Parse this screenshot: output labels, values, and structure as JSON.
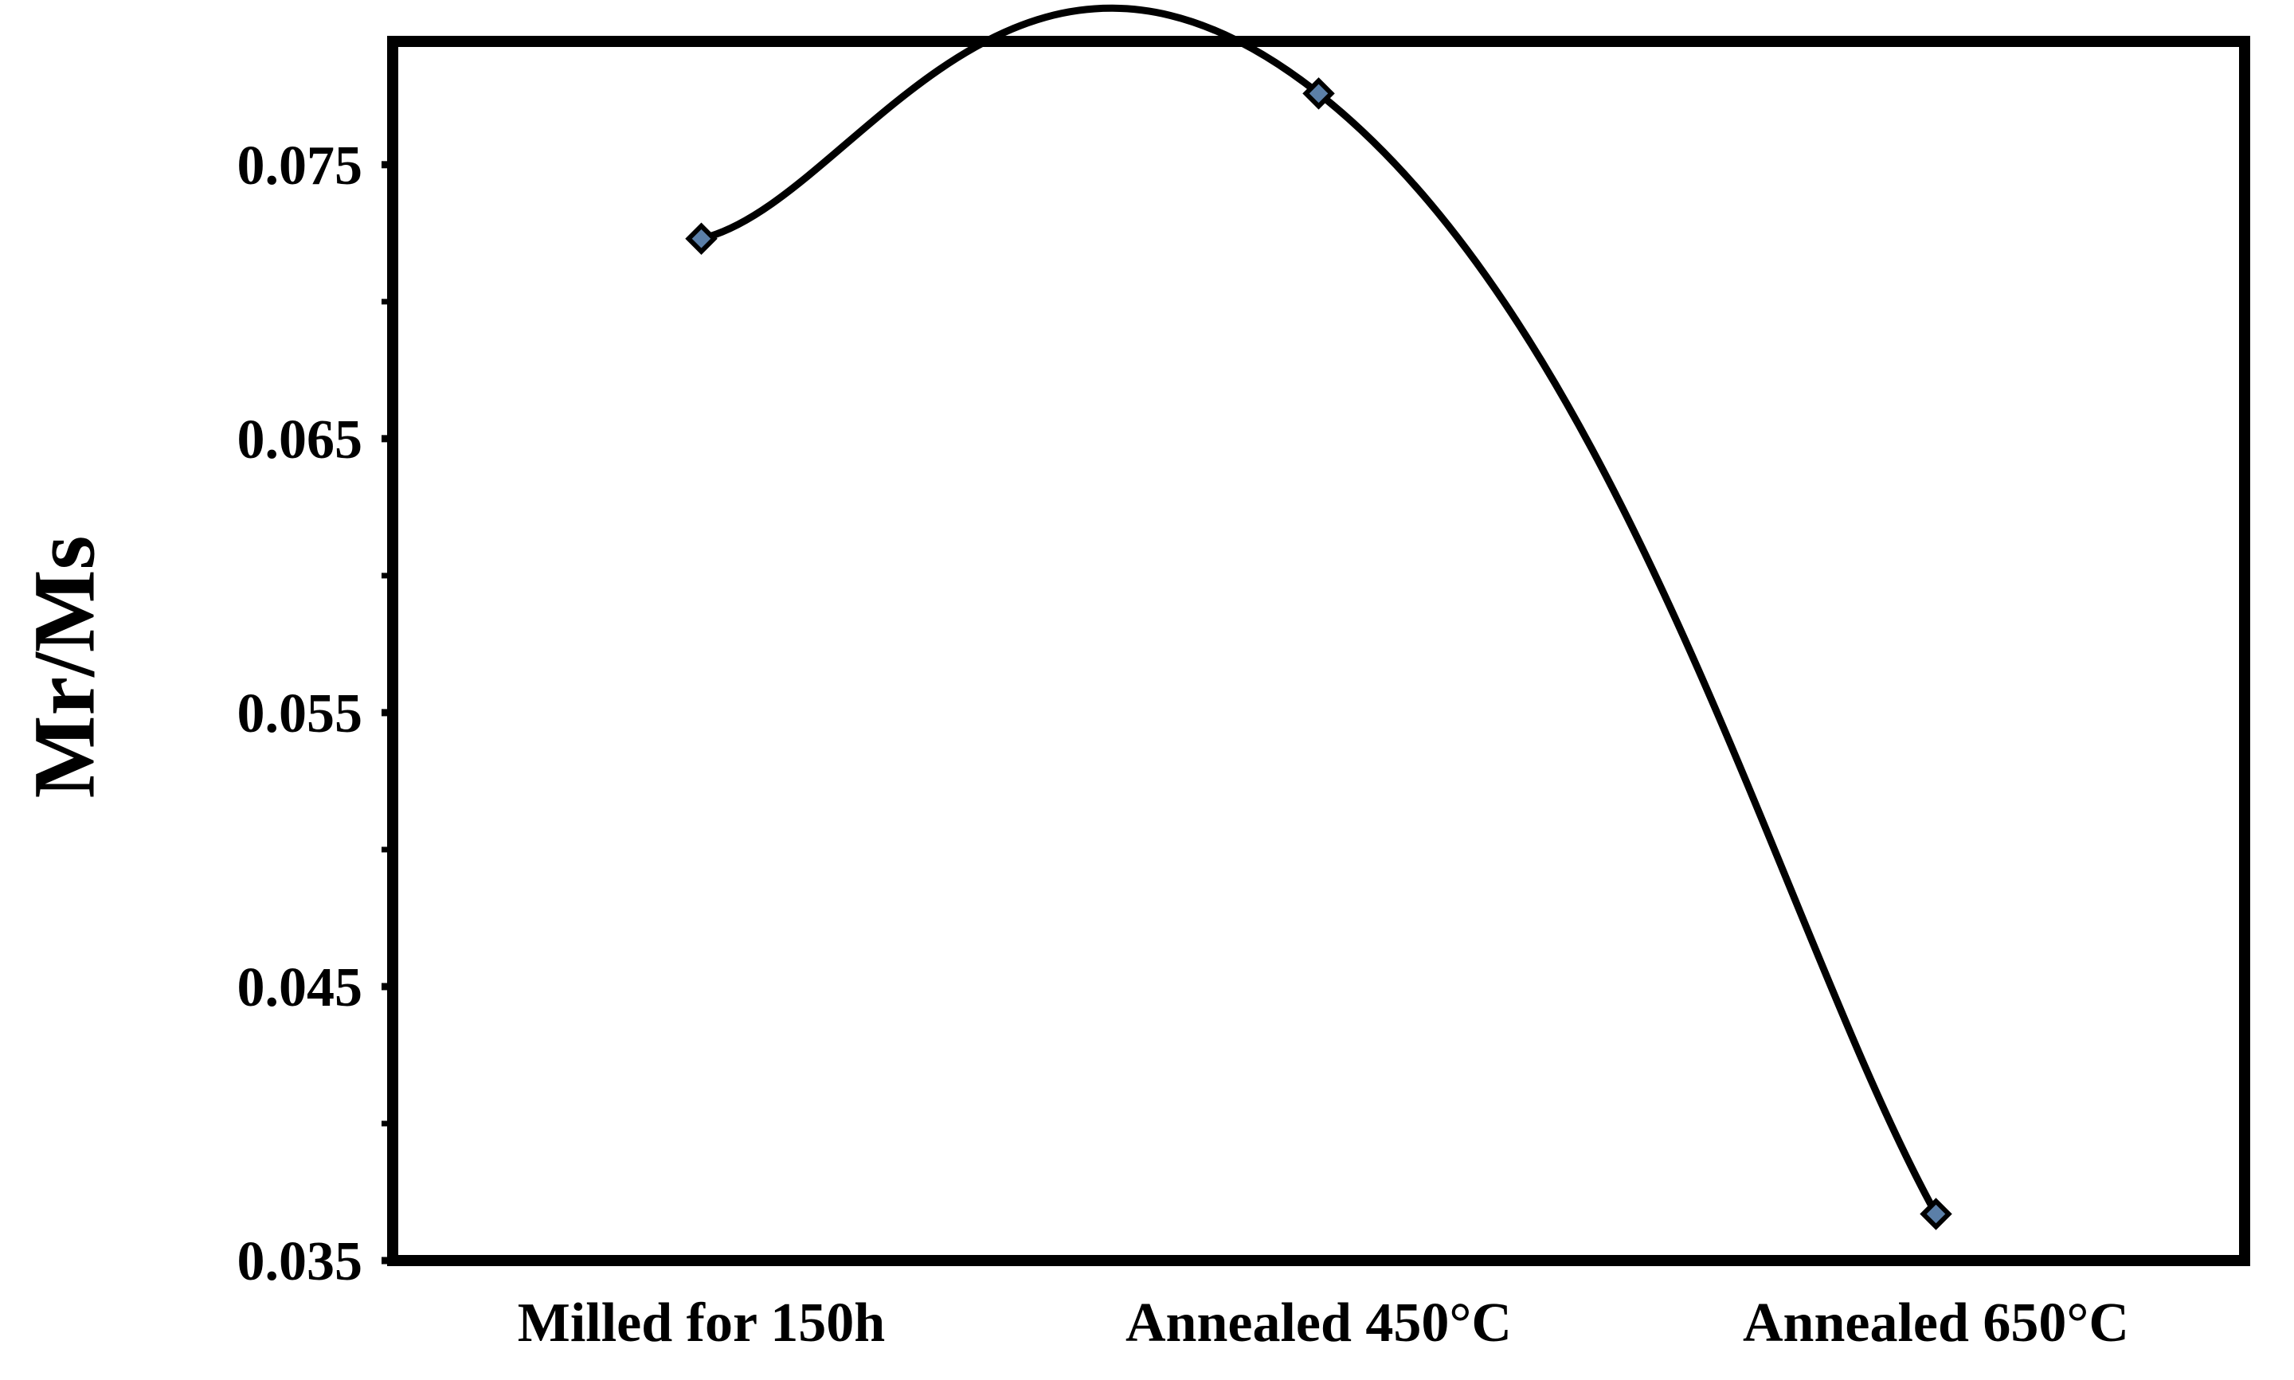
{
  "chart_data": {
    "type": "line",
    "title": "",
    "xlabel": "",
    "ylabel": "Mr/Ms",
    "categories": [
      "Milled for 150h",
      "Annealed 450°C",
      "Annealed 650°C"
    ],
    "series": [
      {
        "values": [
          0.0723,
          0.0776,
          0.0367
        ]
      }
    ],
    "ylim": [
      0.035,
      0.0795
    ],
    "y_ticks": [
      "0.035",
      "0.045",
      "0.055",
      "0.065",
      "0.075"
    ],
    "y_minor_step": 0.005,
    "grid": false,
    "legend": "none",
    "colors": {
      "line": "#000000",
      "marker_fill": "#5b7fa8",
      "frame": "#000000"
    },
    "marker": "diamond-icon"
  }
}
